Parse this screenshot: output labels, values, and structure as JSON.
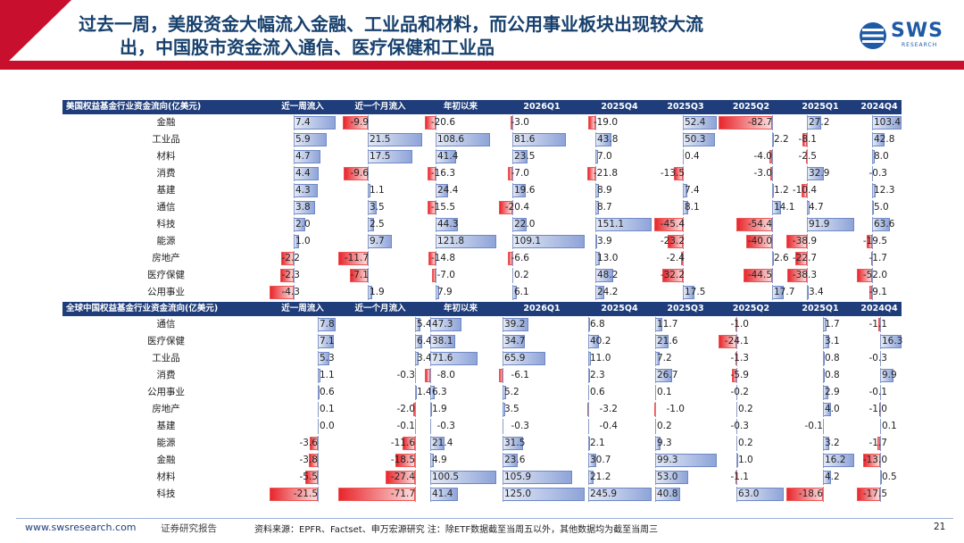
{
  "header": {
    "title_line1": "过去一周，美股资金大幅流入金融、工业品和材料，而公用事业板块出现较大流",
    "title_line2": "出，中国股市资金流入通信、医疗保健和工业品",
    "logo_text": "SWS",
    "logo_subtext": "RESEARCH",
    "colors": {
      "title": "#17406d",
      "accent_red": "#c8102e",
      "table_header": "#1f3d7a"
    }
  },
  "tables": [
    {
      "title": "美国权益基金行业资金流向(亿美元)",
      "columns": [
        "近一周流入",
        "近一个月流入",
        "年初以来",
        "2026Q1",
        "2025Q4",
        "2025Q3",
        "2025Q2",
        "2025Q1",
        "2024Q4"
      ],
      "rows": [
        {
          "name": "金融",
          "values": [
            7.4,
            -9.9,
            -20.6,
            -3.0,
            -19.0,
            52.4,
            -82.7,
            27.2,
            103.4
          ]
        },
        {
          "name": "工业品",
          "values": [
            5.9,
            21.5,
            108.6,
            81.6,
            43.8,
            50.3,
            2.2,
            -8.1,
            42.8
          ]
        },
        {
          "name": "材料",
          "values": [
            4.7,
            17.5,
            41.4,
            23.5,
            7.0,
            0.4,
            -4.0,
            -2.5,
            8.0
          ]
        },
        {
          "name": "消费",
          "values": [
            4.4,
            -9.6,
            -16.3,
            -7.0,
            -21.8,
            -13.5,
            -3.0,
            32.9,
            -0.3
          ]
        },
        {
          "name": "基建",
          "values": [
            4.3,
            1.1,
            24.4,
            19.6,
            8.9,
            7.4,
            1.2,
            -10.4,
            12.3
          ]
        },
        {
          "name": "通信",
          "values": [
            3.8,
            3.5,
            -15.5,
            -20.4,
            8.7,
            8.1,
            14.1,
            4.7,
            5.0
          ]
        },
        {
          "name": "科技",
          "values": [
            2.0,
            2.5,
            44.3,
            22.0,
            151.1,
            -45.4,
            -54.4,
            91.9,
            63.6
          ]
        },
        {
          "name": "能源",
          "values": [
            1.0,
            9.7,
            121.8,
            109.1,
            3.9,
            -23.2,
            -40.0,
            -38.9,
            -19.5
          ]
        },
        {
          "name": "房地产",
          "values": [
            -2.2,
            -11.7,
            -14.8,
            -6.6,
            13.0,
            -2.4,
            2.6,
            -22.7,
            -1.7
          ]
        },
        {
          "name": "医疗保健",
          "values": [
            -2.3,
            -7.1,
            -7.0,
            0.2,
            48.2,
            -32.2,
            -44.5,
            -38.3,
            -52.0
          ]
        },
        {
          "name": "公用事业",
          "values": [
            -4.3,
            1.9,
            7.9,
            6.1,
            24.2,
            17.5,
            17.7,
            3.4,
            -9.1
          ]
        }
      ]
    },
    {
      "title": "全球中国权益基金行业资金流向(亿美元)",
      "columns": [
        "近一周流入",
        "近一个月流入",
        "年初以来",
        "2026Q1",
        "2025Q4",
        "2025Q3",
        "2025Q2",
        "2025Q1",
        "2024Q4"
      ],
      "rows": [
        {
          "name": "通信",
          "values": [
            7.8,
            5.4,
            47.3,
            39.2,
            6.8,
            11.7,
            -1.0,
            1.7,
            -1.1
          ]
        },
        {
          "name": "医疗保健",
          "values": [
            7.1,
            6.4,
            38.1,
            34.7,
            40.2,
            21.6,
            -24.1,
            3.1,
            16.3
          ]
        },
        {
          "name": "工业品",
          "values": [
            5.3,
            3.4,
            71.6,
            65.9,
            11.0,
            7.2,
            -1.3,
            0.8,
            -0.3
          ]
        },
        {
          "name": "消费",
          "values": [
            1.1,
            -0.3,
            -8.0,
            -6.1,
            2.3,
            26.7,
            -5.9,
            0.8,
            9.9
          ]
        },
        {
          "name": "公用事业",
          "values": [
            0.6,
            1.4,
            6.3,
            5.2,
            0.6,
            0.1,
            -0.2,
            2.9,
            -0.1
          ]
        },
        {
          "name": "房地产",
          "values": [
            0.1,
            -2.0,
            1.9,
            3.5,
            -3.2,
            -1.0,
            0.2,
            4.0,
            -1.0
          ]
        },
        {
          "name": "基建",
          "values": [
            0.0,
            -0.1,
            -0.3,
            -0.3,
            -0.4,
            0.2,
            -0.3,
            -0.1,
            0.1
          ]
        },
        {
          "name": "能源",
          "values": [
            -3.6,
            -11.6,
            21.4,
            31.5,
            2.1,
            9.3,
            0.2,
            3.2,
            -1.7
          ]
        },
        {
          "name": "金融",
          "values": [
            -3.8,
            -18.5,
            4.9,
            23.6,
            30.7,
            99.3,
            1.0,
            16.2,
            -13.0
          ]
        },
        {
          "name": "材料",
          "values": [
            -5.5,
            -27.4,
            100.5,
            105.9,
            21.2,
            53.0,
            -1.1,
            4.2,
            0.5
          ]
        },
        {
          "name": "科技",
          "values": [
            -21.5,
            -71.7,
            41.4,
            125.0,
            245.9,
            40.8,
            63.0,
            -18.6,
            -17.5
          ]
        }
      ]
    }
  ],
  "footer": {
    "url": "www.swsresearch.com",
    "tag": "证券研究报告",
    "source": "资料来源：EPFR、Factset、申万宏源研究 注：除ETF数据截至当周五以外，其他数据均为截至当周三",
    "page": "21"
  }
}
